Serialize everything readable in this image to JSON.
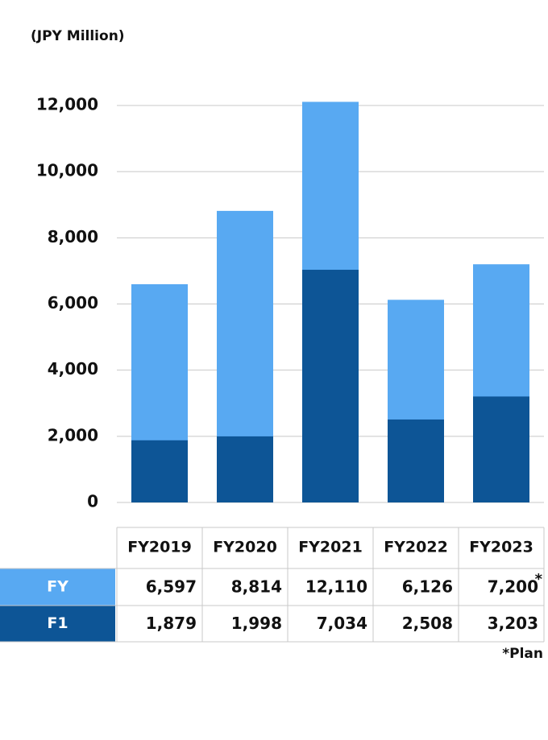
{
  "chart_data": {
    "type": "bar",
    "subtitle": "(JPY Million)",
    "categories": [
      "FY2019",
      "FY2020",
      "FY2021",
      "FY2022",
      "FY2023"
    ],
    "series": [
      {
        "name": "FY",
        "color": "#58a9f2",
        "values": [
          6597,
          8814,
          12110,
          6126,
          7200
        ],
        "value_labels": [
          "6,597",
          "8,814",
          "12,110",
          "6,126",
          "7,200"
        ]
      },
      {
        "name": "F1",
        "color": "#0d5596",
        "values": [
          1879,
          1998,
          7034,
          2508,
          3203
        ],
        "value_labels": [
          "1,879",
          "1,998",
          "7,034",
          "2,508",
          "3,203"
        ]
      }
    ],
    "ylim": [
      0,
      12000
    ],
    "yticks": [
      0,
      {
        "value": 2000,
        "label": "2,000"
      },
      {
        "value": 4000,
        "label": "4,000"
      },
      {
        "value": 6000,
        "label": "6,000"
      },
      {
        "value": 8000,
        "label": "8,000"
      },
      {
        "value": 10000,
        "label": "10,000"
      },
      {
        "value": 12000,
        "label": "12,000"
      }
    ],
    "grid": true,
    "plan_mark": "*",
    "note": "*Plan"
  }
}
